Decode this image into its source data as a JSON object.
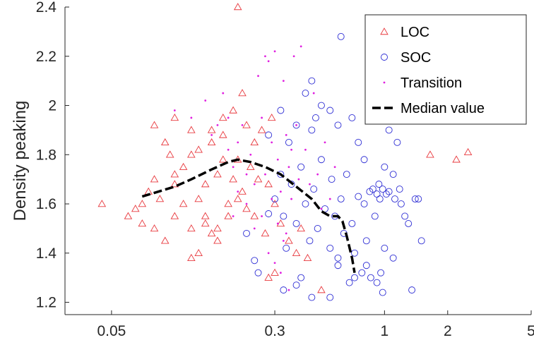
{
  "chart_data": {
    "type": "scatter",
    "title": "",
    "xlabel": "",
    "ylabel": "Density peaking",
    "xscale": "log",
    "xlim": [
      0.03,
      5
    ],
    "ylim": [
      1.15,
      2.4
    ],
    "xticks": [
      0.05,
      0.3,
      1,
      2,
      5
    ],
    "xtick_labels": [
      "0.05",
      "0.3",
      "1",
      "2",
      "5"
    ],
    "yticks": [
      1.2,
      1.4,
      1.6,
      1.8,
      2.0,
      2.2,
      2.4
    ],
    "ytick_labels": [
      "1.2",
      "1.4",
      "1.6",
      "1.8",
      "2",
      "2.2",
      "2.4"
    ],
    "grid": false,
    "legend_position": "top-right",
    "colors": {
      "LOC": "#e8383d",
      "SOC": "#2c2cd4",
      "Transition": "#e020e0",
      "Median value": "#000000"
    },
    "series": [
      {
        "name": "LOC",
        "marker": "triangle",
        "points": [
          [
            0.045,
            1.6
          ],
          [
            0.065,
            1.58
          ],
          [
            0.07,
            1.52
          ],
          [
            0.075,
            1.65
          ],
          [
            0.08,
            1.7
          ],
          [
            0.085,
            1.62
          ],
          [
            0.09,
            1.85
          ],
          [
            0.095,
            1.8
          ],
          [
            0.1,
            1.95
          ],
          [
            0.1,
            1.55
          ],
          [
            0.11,
            1.75
          ],
          [
            0.12,
            1.9
          ],
          [
            0.13,
            1.82
          ],
          [
            0.14,
            1.68
          ],
          [
            0.15,
            1.48
          ],
          [
            0.16,
            1.72
          ],
          [
            0.17,
            1.88
          ],
          [
            0.18,
            1.6
          ],
          [
            0.19,
            1.98
          ],
          [
            0.2,
            1.78
          ],
          [
            0.21,
            1.65
          ],
          [
            0.22,
            1.92
          ],
          [
            0.24,
            1.85
          ],
          [
            0.25,
            1.7
          ],
          [
            0.12,
            1.38
          ],
          [
            0.13,
            1.4
          ],
          [
            0.08,
            1.5
          ],
          [
            0.06,
            1.55
          ],
          [
            0.07,
            1.6
          ],
          [
            0.09,
            1.45
          ],
          [
            0.1,
            1.72
          ],
          [
            0.11,
            1.6
          ],
          [
            0.12,
            1.5
          ],
          [
            0.14,
            1.55
          ],
          [
            0.16,
            1.5
          ],
          [
            0.18,
            1.55
          ],
          [
            0.2,
            1.62
          ],
          [
            0.22,
            1.58
          ],
          [
            0.15,
            1.85
          ],
          [
            0.17,
            1.95
          ],
          [
            0.19,
            1.7
          ],
          [
            0.21,
            2.05
          ],
          [
            0.23,
            1.75
          ],
          [
            0.26,
            1.9
          ],
          [
            0.28,
            1.68
          ],
          [
            0.3,
            1.6
          ],
          [
            0.32,
            1.52
          ],
          [
            0.35,
            1.45
          ],
          [
            0.38,
            1.4
          ],
          [
            0.4,
            1.5
          ],
          [
            0.43,
            1.38
          ],
          [
            0.5,
            1.25
          ],
          [
            0.2,
            2.4
          ],
          [
            0.29,
            1.95
          ],
          [
            0.3,
            1.32
          ],
          [
            0.28,
            1.3
          ],
          [
            0.08,
            1.92
          ],
          [
            0.1,
            1.68
          ],
          [
            0.13,
            1.62
          ],
          [
            0.15,
            1.9
          ],
          [
            0.17,
            1.78
          ],
          [
            0.12,
            1.8
          ],
          [
            0.14,
            1.52
          ],
          [
            0.16,
            1.45
          ],
          [
            0.24,
            1.55
          ],
          [
            0.27,
            1.48
          ],
          [
            1.65,
            1.8
          ],
          [
            2.2,
            1.78
          ],
          [
            2.5,
            1.81
          ]
        ]
      },
      {
        "name": "SOC",
        "marker": "circle",
        "points": [
          [
            0.22,
            1.48
          ],
          [
            0.24,
            1.37
          ],
          [
            0.25,
            1.32
          ],
          [
            0.28,
            1.56
          ],
          [
            0.3,
            1.62
          ],
          [
            0.32,
            1.72
          ],
          [
            0.33,
            1.55
          ],
          [
            0.34,
            1.42
          ],
          [
            0.35,
            1.85
          ],
          [
            0.36,
            1.68
          ],
          [
            0.38,
            1.52
          ],
          [
            0.4,
            1.75
          ],
          [
            0.42,
            1.6
          ],
          [
            0.44,
            1.45
          ],
          [
            0.45,
            1.9
          ],
          [
            0.46,
            1.66
          ],
          [
            0.48,
            1.5
          ],
          [
            0.5,
            1.78
          ],
          [
            0.52,
            1.58
          ],
          [
            0.55,
            1.42
          ],
          [
            0.56,
            1.7
          ],
          [
            0.58,
            1.55
          ],
          [
            0.6,
            1.35
          ],
          [
            0.62,
            1.62
          ],
          [
            0.64,
            1.48
          ],
          [
            0.66,
            1.72
          ],
          [
            0.68,
            1.28
          ],
          [
            0.7,
            1.52
          ],
          [
            0.72,
            1.4
          ],
          [
            0.75,
            1.63
          ],
          [
            0.78,
            1.32
          ],
          [
            0.8,
            1.6
          ],
          [
            0.82,
            1.45
          ],
          [
            0.85,
            1.65
          ],
          [
            0.86,
            1.3
          ],
          [
            0.88,
            1.66
          ],
          [
            0.9,
            1.55
          ],
          [
            0.92,
            1.64
          ],
          [
            0.95,
            1.62
          ],
          [
            0.98,
            1.66
          ],
          [
            1.0,
            1.75
          ],
          [
            1.0,
            1.42
          ],
          [
            1.05,
            1.65
          ],
          [
            1.1,
            1.38
          ],
          [
            1.15,
            1.85
          ],
          [
            1.2,
            1.6
          ],
          [
            1.3,
            1.52
          ],
          [
            1.35,
            1.25
          ],
          [
            1.4,
            1.62
          ],
          [
            1.5,
            1.45
          ],
          [
            0.62,
            2.28
          ],
          [
            0.5,
            2.0
          ],
          [
            0.55,
            1.98
          ],
          [
            0.47,
            1.95
          ],
          [
            0.45,
            2.1
          ],
          [
            0.42,
            2.05
          ],
          [
            0.6,
            1.92
          ],
          [
            0.7,
            1.95
          ],
          [
            0.75,
            1.85
          ],
          [
            0.9,
            1.95
          ],
          [
            1.05,
            1.9
          ],
          [
            1.1,
            1.72
          ],
          [
            0.8,
            1.78
          ],
          [
            0.32,
            1.98
          ],
          [
            0.28,
            1.88
          ],
          [
            0.38,
            1.92
          ],
          [
            0.4,
            1.3
          ],
          [
            0.33,
            1.25
          ],
          [
            0.45,
            1.22
          ],
          [
            0.55,
            1.22
          ],
          [
            0.38,
            1.27
          ],
          [
            0.72,
            1.3
          ],
          [
            0.82,
            1.35
          ],
          [
            0.92,
            1.28
          ],
          [
            0.96,
            1.32
          ],
          [
            0.98,
            1.24
          ],
          [
            0.6,
            1.38
          ],
          [
            1.12,
            1.62
          ],
          [
            1.18,
            1.66
          ],
          [
            1.02,
            1.64
          ],
          [
            0.94,
            1.68
          ],
          [
            1.25,
            1.55
          ],
          [
            1.45,
            1.62
          ]
        ]
      },
      {
        "name": "Transition",
        "marker": "dot",
        "points": [
          [
            0.1,
            1.98
          ],
          [
            0.12,
            1.95
          ],
          [
            0.14,
            2.02
          ],
          [
            0.15,
            1.88
          ],
          [
            0.16,
            1.92
          ],
          [
            0.17,
            2.05
          ],
          [
            0.18,
            1.82
          ],
          [
            0.19,
            1.75
          ],
          [
            0.2,
            1.85
          ],
          [
            0.21,
            1.92
          ],
          [
            0.22,
            1.72
          ],
          [
            0.23,
            1.8
          ],
          [
            0.24,
            1.68
          ],
          [
            0.25,
            2.12
          ],
          [
            0.26,
            1.95
          ],
          [
            0.27,
            2.2
          ],
          [
            0.28,
            2.18
          ],
          [
            0.29,
            1.85
          ],
          [
            0.3,
            2.22
          ],
          [
            0.31,
            1.78
          ],
          [
            0.32,
            1.65
          ],
          [
            0.33,
            2.1
          ],
          [
            0.34,
            1.88
          ],
          [
            0.35,
            1.75
          ],
          [
            0.36,
            1.62
          ],
          [
            0.37,
            2.2
          ],
          [
            0.38,
            1.92
          ],
          [
            0.4,
            2.24
          ],
          [
            0.42,
            1.82
          ],
          [
            0.44,
            1.68
          ],
          [
            0.46,
            2.05
          ],
          [
            0.48,
            1.72
          ],
          [
            0.5,
            1.58
          ],
          [
            0.52,
            1.85
          ],
          [
            0.55,
            1.62
          ],
          [
            0.58,
            1.75
          ],
          [
            0.6,
            1.55
          ],
          [
            0.28,
            1.4
          ],
          [
            0.3,
            1.36
          ],
          [
            0.32,
            1.32
          ],
          [
            0.34,
            1.48
          ],
          [
            0.35,
            1.25
          ],
          [
            0.26,
            1.55
          ],
          [
            0.24,
            1.5
          ],
          [
            0.22,
            1.6
          ],
          [
            0.2,
            1.65
          ],
          [
            0.19,
            1.55
          ],
          [
            0.18,
            1.95
          ],
          [
            0.27,
            1.72
          ],
          [
            0.29,
            1.62
          ],
          [
            0.31,
            1.52
          ],
          [
            0.33,
            1.45
          ],
          [
            0.36,
            1.82
          ],
          [
            0.39,
            1.7
          ]
        ]
      },
      {
        "name": "Median value",
        "marker": "dashed-line",
        "points": [
          [
            0.07,
            1.63
          ],
          [
            0.1,
            1.67
          ],
          [
            0.12,
            1.7
          ],
          [
            0.15,
            1.74
          ],
          [
            0.18,
            1.77
          ],
          [
            0.2,
            1.78
          ],
          [
            0.23,
            1.77
          ],
          [
            0.27,
            1.75
          ],
          [
            0.32,
            1.72
          ],
          [
            0.38,
            1.67
          ],
          [
            0.45,
            1.62
          ],
          [
            0.5,
            1.57
          ],
          [
            0.55,
            1.55
          ],
          [
            0.6,
            1.55
          ],
          [
            0.63,
            1.53
          ],
          [
            0.66,
            1.47
          ],
          [
            0.7,
            1.38
          ],
          [
            0.72,
            1.32
          ]
        ]
      }
    ]
  }
}
